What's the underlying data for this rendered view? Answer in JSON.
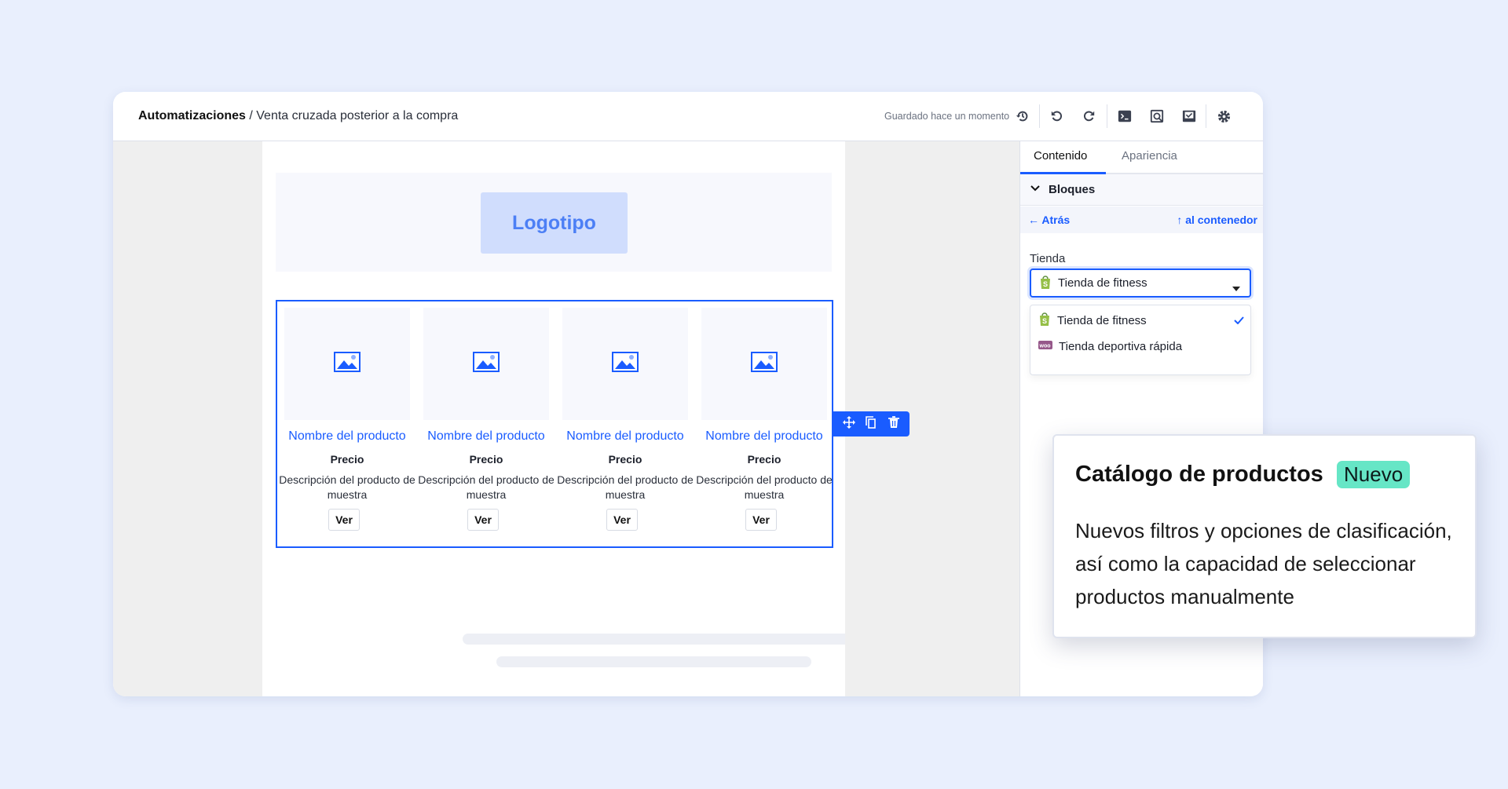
{
  "header": {
    "breadcrumb_root": "Automatizaciones",
    "breadcrumb_sep": " / ",
    "breadcrumb_current": "Venta cruzada posterior a la compra",
    "saved_status": "Guardado hace un momento",
    "icons": [
      "history-icon",
      "undo-icon",
      "redo-icon",
      "terminal-icon",
      "preview-icon",
      "test-check-icon",
      "settings-gear-icon"
    ]
  },
  "email": {
    "logo_label": "Logotipo",
    "products": [
      {
        "name": "Nombre del producto",
        "price": "Precio",
        "description": "Descripción del producto de muestra",
        "button": "Ver"
      },
      {
        "name": "Nombre del producto",
        "price": "Precio",
        "description": "Descripción del producto de muestra",
        "button": "Ver"
      },
      {
        "name": "Nombre del producto",
        "price": "Precio",
        "description": "Descripción del producto de muestra",
        "button": "Ver"
      },
      {
        "name": "Nombre del producto",
        "price": "Precio",
        "description": "Descripción del producto de muestra",
        "button": "Ver"
      }
    ],
    "block_tools": [
      "move-icon",
      "duplicate-icon",
      "delete-icon"
    ]
  },
  "panel": {
    "tabs": [
      {
        "label": "Contenido",
        "active": true
      },
      {
        "label": "Apariencia",
        "active": false
      }
    ],
    "section": "Bloques",
    "back": "Atrás",
    "to_container": "al contenedor",
    "store_label": "Tienda",
    "store_selected": "Tienda de fitness",
    "store_options": [
      {
        "label": "Tienda de fitness",
        "platform": "shopify",
        "selected": true
      },
      {
        "label": "Tienda deportiva rápida",
        "platform": "woocommerce",
        "selected": false
      }
    ]
  },
  "popover": {
    "title": "Catálogo de productos",
    "badge": "Nuevo",
    "body": "Nuevos filtros y opciones de clasificación, así como la capacidad de seleccionar productos manualmente"
  },
  "colors": {
    "accent": "#1a5cff",
    "badge": "#66e6c6",
    "shopify": "#95bf47",
    "woo": "#96588a"
  }
}
